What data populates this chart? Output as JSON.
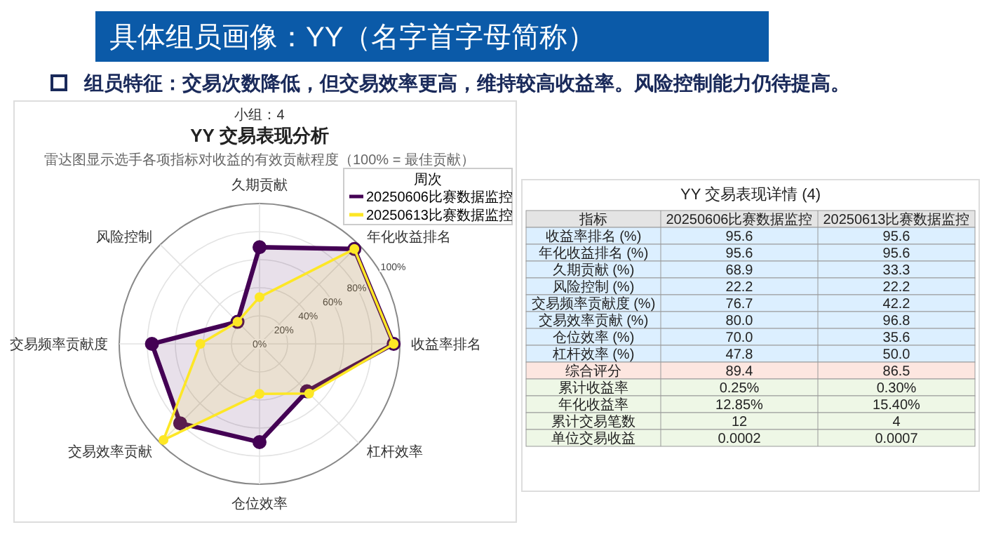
{
  "chart_data": [
    {
      "type": "radar",
      "title": "YY 交易表现分析",
      "subtitle": "雷达图显示选手各项指标对收益的有效贡献程度（100% = 最佳贡献）",
      "annotations": [
        "具体组员画像：YY（名字首字母简称）",
        "组员特征：交易次数降低，但交易效率更高，维持较高收益率。风险控制能力仍待提高。",
        "小组：4"
      ],
      "legend_title": "周次",
      "legend": "top right",
      "grid": true,
      "marker": "circle",
      "categories": [
        "久期贡献",
        "年化收益排名",
        "收益率排名",
        "杠杆效率",
        "仓位效率",
        "交易效率贡献",
        "交易频率贡献度",
        "风险控制"
      ],
      "ylim": [
        0,
        100
      ],
      "yticks": [
        {
          "value": 0,
          "label": "0%"
        },
        {
          "value": 20,
          "label": "20%"
        },
        {
          "value": 40,
          "label": "40%"
        },
        {
          "value": 60,
          "label": "60%"
        },
        {
          "value": 80,
          "label": "80%"
        },
        {
          "value": 100,
          "label": "100%"
        }
      ],
      "series": [
        {
          "name": "20250606比赛数据监控",
          "color": "#440154",
          "values": [
            68.9,
            95.6,
            95.6,
            47.8,
            70.0,
            80.0,
            76.7,
            22.2
          ]
        },
        {
          "name": "20250613比赛数据监控",
          "color": "#fde725",
          "values": [
            33.3,
            95.6,
            95.6,
            50.0,
            35.6,
            96.8,
            42.2,
            22.2
          ]
        }
      ]
    },
    {
      "type": "other",
      "title": "YY 交易表现详情 (4)",
      "annotations": [
        "指标",
        "20250606比赛数据监控",
        "20250613比赛数据监控",
        "收益率排名 (%)",
        "95.6",
        "95.6",
        "年化收益排名 (%)",
        "95.6",
        "95.6",
        "久期贡献 (%)",
        "68.9",
        "33.3",
        "风险控制 (%)",
        "22.2",
        "22.2",
        "交易频率贡献度 (%)",
        "76.7",
        "42.2",
        "交易效率贡献 (%)",
        "80.0",
        "96.8",
        "仓位效率 (%)",
        "70.0",
        "35.6",
        "杠杆效率 (%)",
        "47.8",
        "50.0",
        "综合评分",
        "89.4",
        "86.5",
        "累计收益率",
        "0.25%",
        "0.30%",
        "年化收益率",
        "12.85%",
        "15.40%",
        "累计交易笔数",
        "12",
        "4",
        "单位交易收益",
        "0.0002",
        "0.0007"
      ],
      "colors": [
        "#e4e4e4",
        "#dcefff",
        "#dcefff",
        "#dcefff",
        "#dcefff",
        "#dcefff",
        "#dcefff",
        "#dcefff",
        "#dcefff",
        "#fde6e0",
        "#eef7e6",
        "#eef7e6",
        "#eef7e6",
        "#eef7e6"
      ]
    }
  ]
}
